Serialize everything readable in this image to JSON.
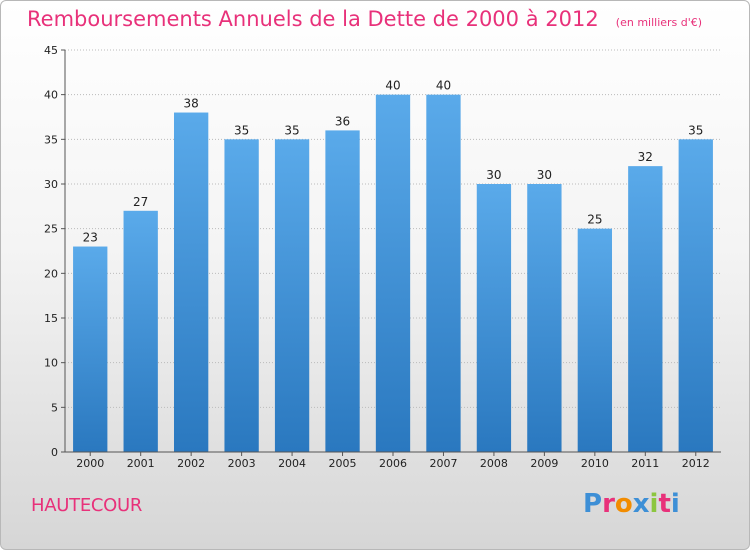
{
  "header": {
    "title": "Remboursements Annuels de la Dette de 2000 à 2012",
    "subtitle": "(en milliers d'€)"
  },
  "footer": {
    "commune": "HAUTECOUR",
    "logo": [
      "P",
      "r",
      "o",
      "x",
      "i",
      "t",
      "i"
    ],
    "logo_colors": [
      "#3d8fd6",
      "#e8317a",
      "#f28c00",
      "#3d8fd6",
      "#8cc63f",
      "#e8317a",
      "#3d8fd6"
    ]
  },
  "colors": {
    "bar_light": "#5aaaea",
    "bar_dark": "#2a78bf",
    "title": "#e8317a",
    "grid": "#bbbbbb"
  },
  "chart_data": {
    "type": "bar",
    "categories": [
      "2000",
      "2001",
      "2002",
      "2003",
      "2004",
      "2005",
      "2006",
      "2007",
      "2008",
      "2009",
      "2010",
      "2011",
      "2012"
    ],
    "values": [
      23,
      27,
      38,
      35,
      35,
      36,
      40,
      40,
      30,
      30,
      25,
      32,
      35
    ],
    "ylim": [
      0,
      45
    ],
    "yticks": [
      0,
      5,
      10,
      15,
      20,
      25,
      30,
      35,
      40,
      45
    ],
    "grid": true,
    "value_labels": true
  }
}
